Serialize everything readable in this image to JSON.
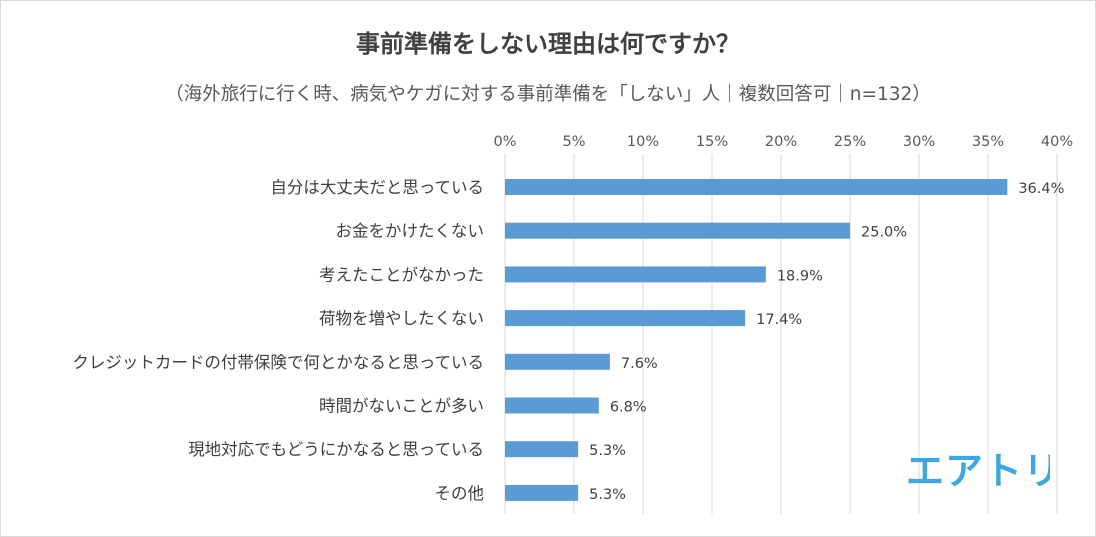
{
  "chart_data": {
    "type": "bar",
    "orientation": "horizontal",
    "title": "事前準備をしない理由は何ですか？",
    "subtitle": "（海外旅行に行く時、病気やケガに対する事前準備を「しない」人｜複数回答可｜n=132）",
    "categories": [
      "自分は大丈夫だと思っている",
      "お金をかけたくない",
      "考えたことがなかった",
      "荷物を増やしたくない",
      "クレジットカードの付帯保険で何とかなると思っている",
      "時間がないことが多い",
      "現地対応でもどうにかなると思っている",
      "その他"
    ],
    "values": [
      36.4,
      25.0,
      18.9,
      17.4,
      7.6,
      6.8,
      5.3,
      5.3
    ],
    "data_labels": [
      "36.4%",
      "25.0%",
      "18.9%",
      "17.4%",
      "7.6%",
      "6.8%",
      "5.3%",
      "5.3%"
    ],
    "xlim": [
      0,
      40
    ],
    "ticks": [
      0,
      5,
      10,
      15,
      20,
      25,
      30,
      35,
      40
    ],
    "tick_labels": [
      "0%",
      "5%",
      "10%",
      "15%",
      "20%",
      "25%",
      "30%",
      "35%",
      "40%"
    ],
    "axis_position": "top",
    "grid": true,
    "bar_color": "#5b9bd5",
    "grid_color": "#d9d9d9"
  },
  "logo": {
    "text": "エアトリ",
    "color": "#3da8e0"
  }
}
